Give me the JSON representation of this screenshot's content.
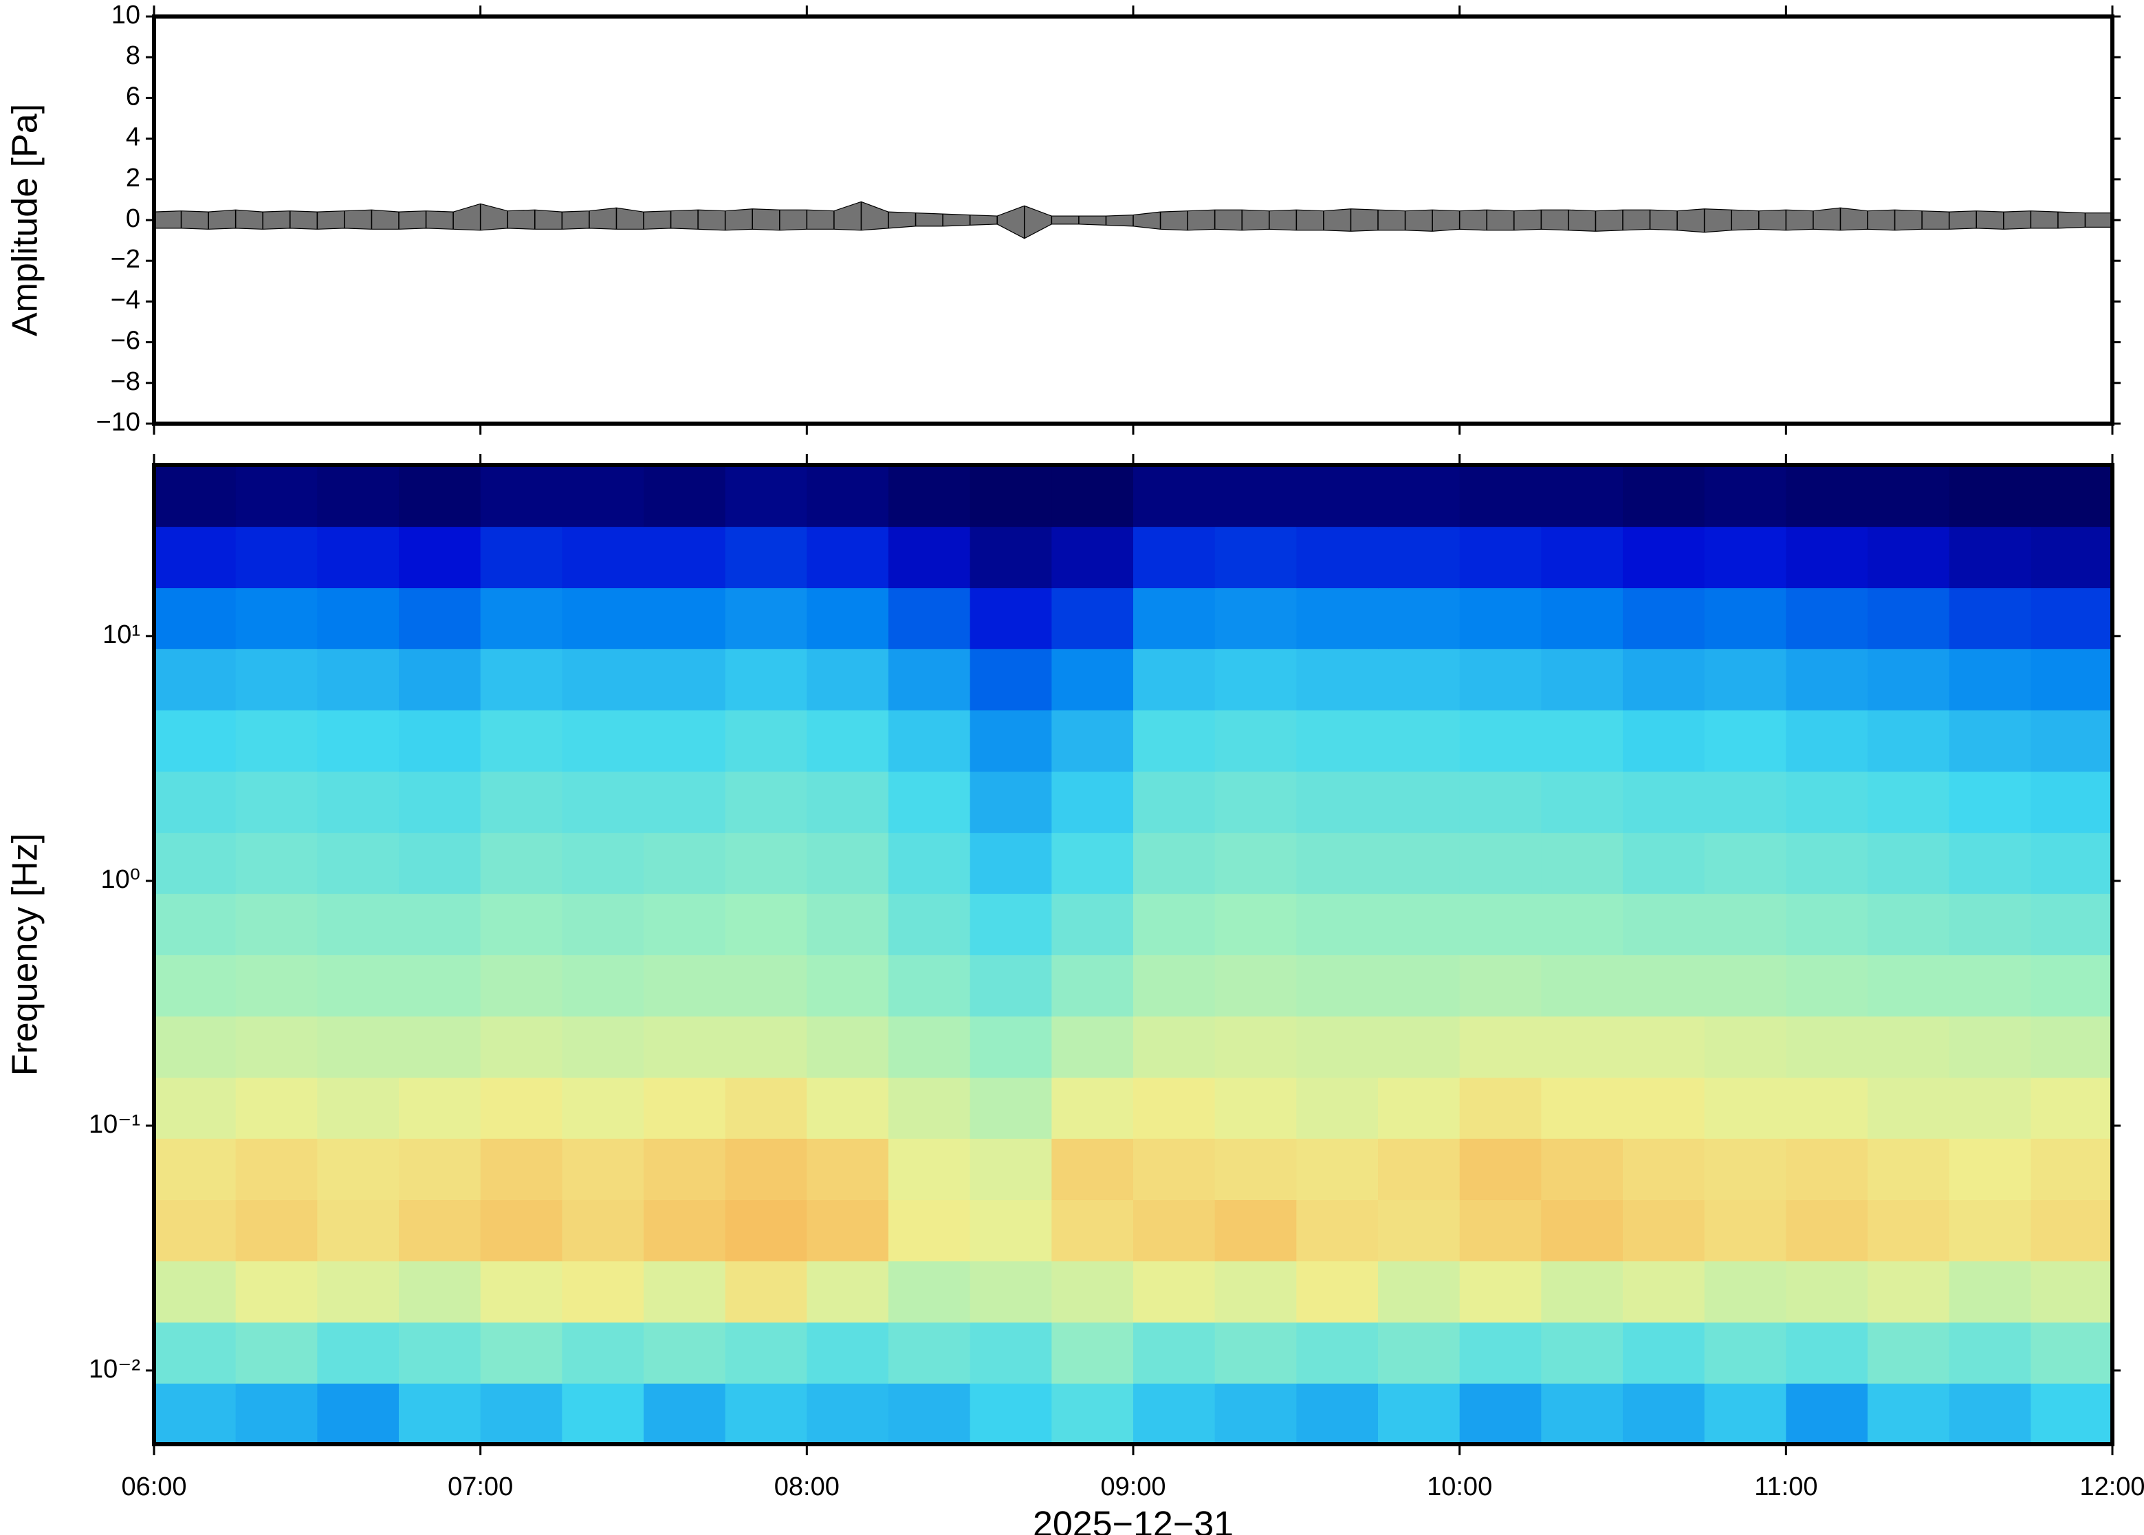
{
  "chart_data": [
    {
      "type": "band",
      "ylabel": "Amplitude [Pa]",
      "ylim": [
        -10,
        10
      ],
      "yticks": [
        {
          "value": -10,
          "label": "−10"
        },
        {
          "value": -8,
          "label": "−8"
        },
        {
          "value": -6,
          "label": "−6"
        },
        {
          "value": -4,
          "label": "−4"
        },
        {
          "value": -2,
          "label": "−2"
        },
        0,
        2,
        4,
        6,
        8,
        10
      ],
      "xlim": [
        "06:00",
        "12:00"
      ],
      "xticks": [
        "06:00",
        "07:00",
        "08:00",
        "09:00",
        "10:00",
        "11:00",
        "12:00"
      ],
      "x": [
        "06:00",
        "06:05",
        "06:10",
        "06:15",
        "06:20",
        "06:25",
        "06:30",
        "06:35",
        "06:40",
        "06:45",
        "06:50",
        "06:55",
        "07:00",
        "07:05",
        "07:10",
        "07:15",
        "07:20",
        "07:25",
        "07:30",
        "07:35",
        "07:40",
        "07:45",
        "07:50",
        "07:55",
        "08:00",
        "08:05",
        "08:10",
        "08:15",
        "08:20",
        "08:25",
        "08:30",
        "08:35",
        "08:40",
        "08:45",
        "08:50",
        "08:55",
        "09:00",
        "09:05",
        "09:10",
        "09:15",
        "09:20",
        "09:25",
        "09:30",
        "09:35",
        "09:40",
        "09:45",
        "09:50",
        "09:55",
        "10:00",
        "10:05",
        "10:10",
        "10:15",
        "10:20",
        "10:25",
        "10:30",
        "10:35",
        "10:40",
        "10:45",
        "10:50",
        "10:55",
        "11:00",
        "11:05",
        "11:10",
        "11:15",
        "11:20",
        "11:25",
        "11:30",
        "11:35",
        "11:40",
        "11:45",
        "11:50",
        "11:55",
        "12:00"
      ],
      "series": [
        {
          "color": "#000000",
          "values": [
            0.4,
            0.45,
            0.4,
            0.5,
            0.4,
            0.45,
            0.4,
            0.45,
            0.5,
            0.4,
            0.45,
            0.4,
            0.8,
            0.45,
            0.5,
            0.4,
            0.45,
            0.6,
            0.4,
            0.45,
            0.5,
            0.45,
            0.55,
            0.5,
            0.5,
            0.45,
            0.9,
            0.4,
            0.35,
            0.3,
            0.25,
            0.2,
            0.7,
            0.2,
            0.2,
            0.2,
            0.25,
            0.4,
            0.45,
            0.5,
            0.5,
            0.45,
            0.5,
            0.45,
            0.55,
            0.5,
            0.45,
            0.5,
            0.45,
            0.5,
            0.45,
            0.5,
            0.5,
            0.45,
            0.5,
            0.5,
            0.45,
            0.55,
            0.5,
            0.45,
            0.5,
            0.45,
            0.6,
            0.45,
            0.5,
            0.45,
            0.4,
            0.45,
            0.4,
            0.45,
            0.4,
            0.35,
            0.35
          ]
        },
        {
          "color": "#000000",
          "values": [
            -0.4,
            -0.4,
            -0.45,
            -0.4,
            -0.45,
            -0.4,
            -0.45,
            -0.4,
            -0.45,
            -0.45,
            -0.4,
            -0.45,
            -0.5,
            -0.4,
            -0.45,
            -0.45,
            -0.4,
            -0.45,
            -0.45,
            -0.4,
            -0.45,
            -0.5,
            -0.45,
            -0.5,
            -0.45,
            -0.45,
            -0.5,
            -0.4,
            -0.3,
            -0.3,
            -0.25,
            -0.2,
            -0.9,
            -0.2,
            -0.2,
            -0.25,
            -0.3,
            -0.45,
            -0.5,
            -0.45,
            -0.5,
            -0.45,
            -0.5,
            -0.5,
            -0.55,
            -0.5,
            -0.5,
            -0.55,
            -0.45,
            -0.5,
            -0.5,
            -0.45,
            -0.5,
            -0.55,
            -0.5,
            -0.45,
            -0.5,
            -0.6,
            -0.5,
            -0.45,
            -0.5,
            -0.45,
            -0.5,
            -0.45,
            -0.5,
            -0.45,
            -0.45,
            -0.4,
            -0.45,
            -0.4,
            -0.4,
            -0.35,
            -0.35
          ]
        }
      ]
    },
    {
      "type": "heatmap",
      "ylabel": "Frequency [Hz]",
      "xlabel": "2025−12−31",
      "log_y": true,
      "ylim": [
        0.005,
        50
      ],
      "yticks": [
        {
          "value": 0.01,
          "label": "10⁻²"
        },
        {
          "value": 0.1,
          "label": "10⁻¹"
        },
        {
          "value": 1,
          "label": "10⁰"
        },
        {
          "value": 10,
          "label": "10¹"
        }
      ],
      "xlim": [
        "06:00",
        "12:00"
      ],
      "xticks": [
        "06:00",
        "07:00",
        "08:00",
        "09:00",
        "10:00",
        "11:00",
        "12:00"
      ],
      "x": [
        "06:00",
        "06:15",
        "06:30",
        "06:45",
        "07:00",
        "07:15",
        "07:30",
        "07:45",
        "08:00",
        "08:15",
        "08:30",
        "08:45",
        "09:00",
        "09:15",
        "09:30",
        "09:45",
        "10:00",
        "10:15",
        "10:30",
        "10:45",
        "11:00",
        "11:15",
        "11:30",
        "11:45",
        "12:00"
      ],
      "y": [
        0.005,
        0.0089,
        0.0158,
        0.0281,
        0.05,
        0.089,
        0.158,
        0.281,
        0.5,
        0.89,
        1.58,
        2.81,
        5,
        8.9,
        15.8,
        28.1,
        50
      ],
      "zlim": [
        0,
        1
      ],
      "colormap": [
        "#00005e",
        "#0010d8",
        "#0080f0",
        "#40d8f0",
        "#a0f0c0",
        "#f0f090",
        "#f8b050",
        "#f07038"
      ],
      "z": [
        [
          0.38,
          0.36,
          0.33,
          0.4,
          0.38,
          0.42,
          0.36,
          0.4,
          0.38,
          0.37,
          0.42,
          0.46,
          0.4,
          0.38,
          0.36,
          0.4,
          0.34,
          0.38,
          0.36,
          0.4,
          0.33,
          0.4,
          0.38,
          0.42
        ],
        [
          0.5,
          0.52,
          0.48,
          0.5,
          0.53,
          0.5,
          0.52,
          0.5,
          0.47,
          0.5,
          0.48,
          0.55,
          0.5,
          0.52,
          0.5,
          0.52,
          0.48,
          0.5,
          0.47,
          0.5,
          0.48,
          0.52,
          0.5,
          0.53
        ],
        [
          0.66,
          0.7,
          0.68,
          0.65,
          0.7,
          0.72,
          0.68,
          0.74,
          0.68,
          0.62,
          0.64,
          0.66,
          0.7,
          0.68,
          0.72,
          0.66,
          0.7,
          0.66,
          0.68,
          0.65,
          0.66,
          0.68,
          0.64,
          0.66
        ],
        [
          0.76,
          0.78,
          0.75,
          0.78,
          0.8,
          0.77,
          0.8,
          0.82,
          0.8,
          0.72,
          0.7,
          0.76,
          0.78,
          0.8,
          0.76,
          0.75,
          0.78,
          0.8,
          0.78,
          0.76,
          0.78,
          0.76,
          0.74,
          0.76
        ],
        [
          0.74,
          0.76,
          0.74,
          0.75,
          0.78,
          0.76,
          0.78,
          0.8,
          0.78,
          0.7,
          0.68,
          0.78,
          0.76,
          0.75,
          0.74,
          0.76,
          0.8,
          0.78,
          0.76,
          0.75,
          0.76,
          0.74,
          0.72,
          0.74
        ],
        [
          0.68,
          0.7,
          0.68,
          0.7,
          0.72,
          0.7,
          0.72,
          0.74,
          0.7,
          0.66,
          0.62,
          0.7,
          0.72,
          0.7,
          0.68,
          0.7,
          0.74,
          0.72,
          0.72,
          0.7,
          0.7,
          0.68,
          0.68,
          0.7
        ],
        [
          0.64,
          0.65,
          0.64,
          0.64,
          0.66,
          0.65,
          0.66,
          0.66,
          0.64,
          0.6,
          0.56,
          0.62,
          0.66,
          0.67,
          0.66,
          0.66,
          0.68,
          0.68,
          0.68,
          0.67,
          0.66,
          0.66,
          0.65,
          0.64
        ],
        [
          0.58,
          0.59,
          0.58,
          0.58,
          0.6,
          0.59,
          0.6,
          0.6,
          0.58,
          0.54,
          0.5,
          0.55,
          0.6,
          0.61,
          0.6,
          0.6,
          0.61,
          0.6,
          0.6,
          0.6,
          0.59,
          0.58,
          0.58,
          0.57
        ],
        [
          0.54,
          0.55,
          0.54,
          0.54,
          0.56,
          0.55,
          0.56,
          0.57,
          0.55,
          0.5,
          0.45,
          0.5,
          0.56,
          0.57,
          0.56,
          0.56,
          0.56,
          0.56,
          0.55,
          0.55,
          0.54,
          0.53,
          0.52,
          0.51
        ],
        [
          0.5,
          0.51,
          0.5,
          0.49,
          0.52,
          0.51,
          0.52,
          0.53,
          0.52,
          0.47,
          0.4,
          0.45,
          0.52,
          0.53,
          0.52,
          0.52,
          0.52,
          0.52,
          0.5,
          0.51,
          0.5,
          0.49,
          0.47,
          0.46
        ],
        [
          0.47,
          0.48,
          0.47,
          0.46,
          0.49,
          0.48,
          0.48,
          0.5,
          0.49,
          0.44,
          0.36,
          0.41,
          0.49,
          0.5,
          0.49,
          0.49,
          0.49,
          0.48,
          0.47,
          0.47,
          0.46,
          0.45,
          0.43,
          0.42
        ],
        [
          0.43,
          0.44,
          0.43,
          0.42,
          0.45,
          0.44,
          0.44,
          0.46,
          0.44,
          0.4,
          0.32,
          0.37,
          0.45,
          0.46,
          0.45,
          0.45,
          0.44,
          0.44,
          0.42,
          0.43,
          0.41,
          0.4,
          0.38,
          0.37
        ],
        [
          0.37,
          0.38,
          0.37,
          0.35,
          0.39,
          0.38,
          0.38,
          0.4,
          0.38,
          0.33,
          0.25,
          0.3,
          0.39,
          0.4,
          0.39,
          0.39,
          0.38,
          0.37,
          0.35,
          0.36,
          0.34,
          0.33,
          0.31,
          0.3
        ],
        [
          0.28,
          0.29,
          0.28,
          0.26,
          0.3,
          0.29,
          0.29,
          0.31,
          0.29,
          0.24,
          0.16,
          0.2,
          0.3,
          0.31,
          0.3,
          0.3,
          0.29,
          0.28,
          0.26,
          0.27,
          0.25,
          0.24,
          0.21,
          0.2
        ],
        [
          0.16,
          0.17,
          0.16,
          0.14,
          0.18,
          0.17,
          0.17,
          0.19,
          0.17,
          0.12,
          0.06,
          0.09,
          0.18,
          0.19,
          0.18,
          0.18,
          0.17,
          0.16,
          0.14,
          0.15,
          0.13,
          0.12,
          0.09,
          0.08
        ],
        [
          0.03,
          0.04,
          0.03,
          0.02,
          0.04,
          0.04,
          0.03,
          0.05,
          0.04,
          0.02,
          0.01,
          0.01,
          0.04,
          0.04,
          0.04,
          0.04,
          0.03,
          0.03,
          0.02,
          0.03,
          0.02,
          0.02,
          0.01,
          0.01
        ]
      ]
    }
  ]
}
